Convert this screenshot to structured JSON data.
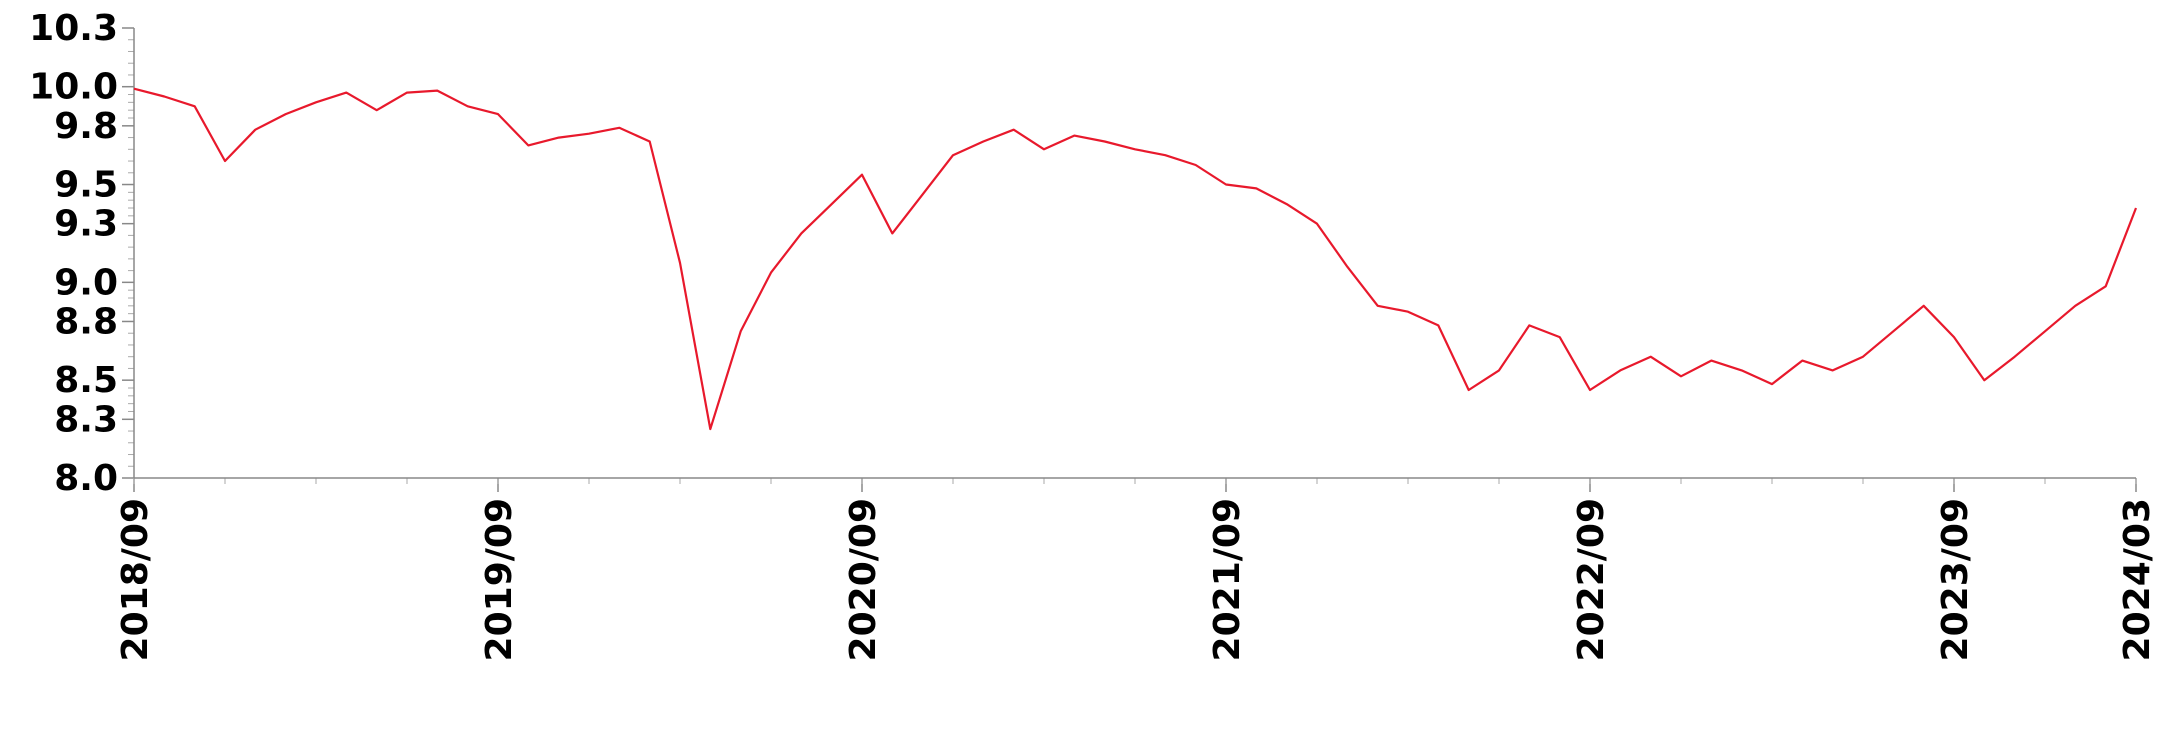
{
  "chart_data": {
    "type": "line",
    "title": "",
    "xlabel": "",
    "ylabel": "",
    "ylim": [
      8.0,
      10.3
    ],
    "xlim": [
      "2018-09",
      "2024-03"
    ],
    "y_ticks": [
      "8.0",
      "8.3",
      "8.5",
      "8.8",
      "9.0",
      "9.3",
      "9.5",
      "9.8",
      "10.0",
      "10.3"
    ],
    "x_ticks": [
      "2018/09",
      "2019/09",
      "2020/09",
      "2021/09",
      "2022/09",
      "2023/09",
      "2024/03"
    ],
    "grid": false,
    "series": [
      {
        "color": "#e8192c",
        "x": [
          "2018-09",
          "2018-10",
          "2018-11",
          "2018-12",
          "2019-01",
          "2019-02",
          "2019-03",
          "2019-04",
          "2019-05",
          "2019-06",
          "2019-07",
          "2019-08",
          "2019-09",
          "2019-10",
          "2019-11",
          "2019-12",
          "2020-01",
          "2020-02",
          "2020-03",
          "2020-04",
          "2020-05",
          "2020-06",
          "2020-07",
          "2020-08",
          "2020-09",
          "2020-10",
          "2020-11",
          "2020-12",
          "2021-01",
          "2021-02",
          "2021-03",
          "2021-04",
          "2021-05",
          "2021-06",
          "2021-07",
          "2021-08",
          "2021-09",
          "2021-10",
          "2021-11",
          "2021-12",
          "2022-01",
          "2022-02",
          "2022-03",
          "2022-04",
          "2022-05",
          "2022-06",
          "2022-07",
          "2022-08",
          "2022-09",
          "2022-10",
          "2022-11",
          "2022-12",
          "2023-01",
          "2023-02",
          "2023-03",
          "2023-04",
          "2023-05",
          "2023-06",
          "2023-07",
          "2023-08",
          "2023-09",
          "2023-10",
          "2023-11",
          "2023-12",
          "2024-01",
          "2024-02",
          "2024-03"
        ],
        "values": [
          9.99,
          9.95,
          9.9,
          9.62,
          9.78,
          9.86,
          9.92,
          9.97,
          9.88,
          9.97,
          9.98,
          9.9,
          9.86,
          9.7,
          9.74,
          9.76,
          9.79,
          9.72,
          9.1,
          8.25,
          8.75,
          9.05,
          9.25,
          9.4,
          9.55,
          9.25,
          9.45,
          9.65,
          9.72,
          9.78,
          9.68,
          9.75,
          9.72,
          9.68,
          9.65,
          9.6,
          9.5,
          9.48,
          9.4,
          9.3,
          9.08,
          8.88,
          8.85,
          8.78,
          8.45,
          8.55,
          8.78,
          8.72,
          8.45,
          8.55,
          8.62,
          8.52,
          8.6,
          8.55,
          8.48,
          8.6,
          8.55,
          8.62,
          8.75,
          8.88,
          8.72,
          8.5,
          8.62,
          8.75,
          8.88,
          8.98,
          9.38
        ]
      }
    ]
  }
}
